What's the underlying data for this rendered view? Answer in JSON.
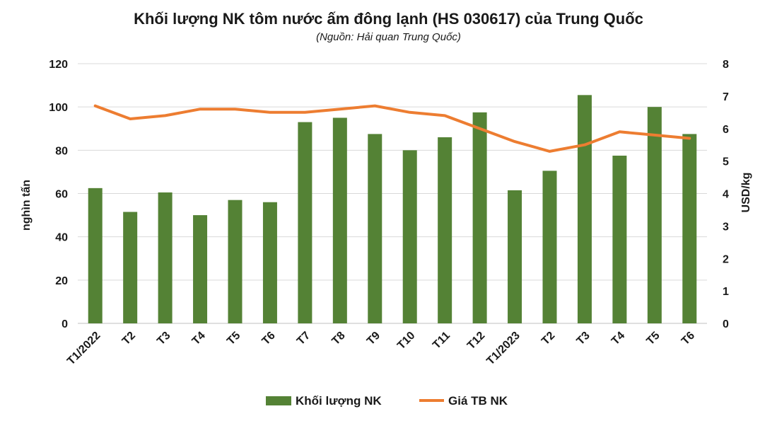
{
  "chart_data": {
    "type": "bar",
    "title": "Khối lượng NK tôm nước ấm đông lạnh (HS 030617) của Trung Quốc",
    "subtitle": "(Nguồn: Hải quan Trung Quốc)",
    "categories": [
      "T1/2022",
      "T2",
      "T3",
      "T4",
      "T5",
      "T6",
      "T7",
      "T8",
      "T9",
      "T10",
      "T11",
      "T12",
      "T1/2023",
      "T2",
      "T3",
      "T4",
      "T5",
      "T6"
    ],
    "series": [
      {
        "name": "Khối lượng NK",
        "type": "bar",
        "axis": "left",
        "color": "#548235",
        "values": [
          62.5,
          51.5,
          60.5,
          50,
          57,
          56,
          93,
          95,
          87.5,
          80,
          86,
          97.5,
          61.5,
          70.5,
          105.5,
          77.5,
          100,
          87.5
        ]
      },
      {
        "name": "Giá  TB NK",
        "type": "line",
        "axis": "right",
        "color": "#ED7D31",
        "values": [
          6.7,
          6.3,
          6.4,
          6.6,
          6.6,
          6.5,
          6.5,
          6.6,
          6.7,
          6.5,
          6.4,
          6.0,
          5.6,
          5.3,
          5.5,
          5.9,
          5.8,
          5.7
        ]
      }
    ],
    "ylabel": "nghìn tấn",
    "ylabel_right": "USD/kg",
    "ylim": [
      0,
      120
    ],
    "yticks": [
      0,
      20,
      40,
      60,
      80,
      100,
      120
    ],
    "ylim_right": [
      0,
      8
    ],
    "yticks_right": [
      0,
      1,
      2,
      3,
      4,
      5,
      6,
      7,
      8
    ],
    "grid": true,
    "legend": "bottom"
  }
}
